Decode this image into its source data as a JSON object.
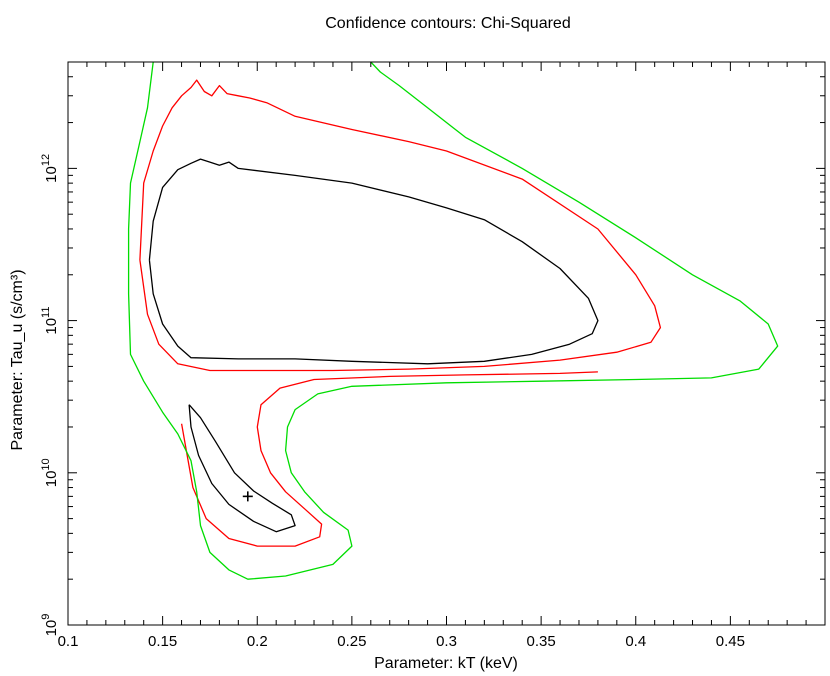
{
  "chart_data": {
    "type": "contour",
    "title": "Confidence contours: Chi-Squared",
    "xlabel": "Parameter: kT (keV)",
    "ylabel": "Parameter: Tau_u (s/cm³)",
    "xlim": [
      0.1,
      0.5
    ],
    "ylim": [
      1000000000.0,
      5000000000000.0
    ],
    "y_scale": "log",
    "x_ticks": [
      {
        "value": 0.1,
        "label": "0.1"
      },
      {
        "value": 0.15,
        "label": "0.15"
      },
      {
        "value": 0.2,
        "label": "0.2"
      },
      {
        "value": 0.25,
        "label": "0.25"
      },
      {
        "value": 0.3,
        "label": "0.3"
      },
      {
        "value": 0.35,
        "label": "0.35"
      },
      {
        "value": 0.4,
        "label": "0.4"
      },
      {
        "value": 0.45,
        "label": "0.45"
      }
    ],
    "y_ticks": [
      {
        "value": 1000000000.0,
        "mantissa": "10",
        "exp": "9"
      },
      {
        "value": 10000000000.0,
        "mantissa": "10",
        "exp": "10"
      },
      {
        "value": 100000000000.0,
        "mantissa": "10",
        "exp": "11"
      },
      {
        "value": 1000000000000.0,
        "mantissa": "10",
        "exp": "12"
      }
    ],
    "best_fit": {
      "x": 0.195,
      "y": 7000000000.0
    },
    "contours": [
      {
        "color": "#000000",
        "paths": [
          [
            [
              0.143,
              250000000000.0
            ],
            [
              0.145,
              450000000000.0
            ],
            [
              0.15,
              750000000000.0
            ],
            [
              0.158,
              980000000000.0
            ],
            [
              0.165,
              1080000000000.0
            ],
            [
              0.17,
              1150000000000.0
            ],
            [
              0.175,
              1100000000000.0
            ],
            [
              0.18,
              1050000000000.0
            ],
            [
              0.185,
              1100000000000.0
            ],
            [
              0.19,
              1000000000000.0
            ],
            [
              0.22,
              900000000000.0
            ],
            [
              0.25,
              800000000000.0
            ],
            [
              0.28,
              650000000000.0
            ],
            [
              0.3,
              550000000000.0
            ],
            [
              0.32,
              460000000000.0
            ],
            [
              0.34,
              330000000000.0
            ],
            [
              0.36,
              220000000000.0
            ],
            [
              0.375,
              140000000000.0
            ],
            [
              0.38,
              100000000000.0
            ],
            [
              0.377,
              82000000000.0
            ],
            [
              0.365,
              70000000000.0
            ],
            [
              0.345,
              60000000000.0
            ],
            [
              0.32,
              54000000000.0
            ],
            [
              0.29,
              52000000000.0
            ],
            [
              0.25,
              54000000000.0
            ],
            [
              0.22,
              56000000000.0
            ],
            [
              0.19,
              56000000000.0
            ],
            [
              0.165,
              57000000000.0
            ],
            [
              0.158,
              68000000000.0
            ],
            [
              0.15,
              95000000000.0
            ],
            [
              0.145,
              150000000000.0
            ],
            [
              0.143,
              250000000000.0
            ]
          ],
          [
            [
              0.164,
              28000000000.0
            ],
            [
              0.165,
              20000000000.0
            ],
            [
              0.169,
              13000000000.0
            ],
            [
              0.176,
              8500000000.0
            ],
            [
              0.185,
              6200000000.0
            ],
            [
              0.198,
              4800000000.0
            ],
            [
              0.21,
              4100000000.0
            ],
            [
              0.22,
              4500000000.0
            ],
            [
              0.218,
              5300000000.0
            ],
            [
              0.208,
              6300000000.0
            ],
            [
              0.198,
              7600000000.0
            ],
            [
              0.188,
              10000000000.0
            ],
            [
              0.178,
              16000000000.0
            ],
            [
              0.17,
              23000000000.0
            ],
            [
              0.164,
              28000000000.0
            ]
          ]
        ]
      },
      {
        "color": "#ff0000",
        "paths": [
          [
            [
              0.138,
              250000000000.0
            ],
            [
              0.14,
              800000000000.0
            ],
            [
              0.145,
              1300000000000.0
            ],
            [
              0.15,
              1900000000000.0
            ],
            [
              0.155,
              2500000000000.0
            ],
            [
              0.16,
              3000000000000.0
            ],
            [
              0.165,
              3400000000000.0
            ],
            [
              0.168,
              3800000000000.0
            ],
            [
              0.172,
              3200000000000.0
            ],
            [
              0.176,
              3000000000000.0
            ],
            [
              0.18,
              3500000000000.0
            ],
            [
              0.184,
              3100000000000.0
            ],
            [
              0.19,
              3000000000000.0
            ],
            [
              0.196,
              2900000000000.0
            ],
            [
              0.205,
              2700000000000.0
            ],
            [
              0.22,
              2200000000000.0
            ],
            [
              0.25,
              1800000000000.0
            ],
            [
              0.28,
              1500000000000.0
            ],
            [
              0.3,
              1300000000000.0
            ],
            [
              0.34,
              850000000000.0
            ],
            [
              0.38,
              400000000000.0
            ],
            [
              0.4,
              200000000000.0
            ],
            [
              0.41,
              125000000000.0
            ],
            [
              0.413,
              90000000000.0
            ],
            [
              0.408,
              72000000000.0
            ],
            [
              0.39,
              62000000000.0
            ],
            [
              0.36,
              55000000000.0
            ],
            [
              0.32,
              50000000000.0
            ],
            [
              0.28,
              48000000000.0
            ],
            [
              0.24,
              47000000000.0
            ],
            [
              0.2,
              47000000000.0
            ],
            [
              0.175,
              47000000000.0
            ],
            [
              0.158,
              52000000000.0
            ],
            [
              0.148,
              70000000000.0
            ],
            [
              0.142,
              110000000000.0
            ],
            [
              0.138,
              250000000000.0
            ]
          ],
          [
            [
              0.16,
              21000000000.0
            ],
            [
              0.163,
              13000000000.0
            ],
            [
              0.166,
              8000000000.0
            ],
            [
              0.173,
              5000000000.0
            ],
            [
              0.185,
              3700000000.0
            ],
            [
              0.2,
              3300000000.0
            ],
            [
              0.22,
              3300000000.0
            ],
            [
              0.233,
              3800000000.0
            ],
            [
              0.234,
              4600000000.0
            ],
            [
              0.225,
              5800000000.0
            ],
            [
              0.215,
              7500000000.0
            ],
            [
              0.207,
              10000000000.0
            ],
            [
              0.202,
              14000000000.0
            ],
            [
              0.2,
              20000000000.0
            ],
            [
              0.202,
              28000000000.0
            ],
            [
              0.212,
              36000000000.0
            ],
            [
              0.23,
              41000000000.0
            ],
            [
              0.27,
              43000000000.0
            ],
            [
              0.31,
              44000000000.0
            ],
            [
              0.36,
              45000000000.0
            ],
            [
              0.38,
              46000000000.0
            ]
          ]
        ]
      },
      {
        "color": "#00dd00",
        "paths": [
          [
            [
              0.145,
              5000000000000.0
            ],
            [
              0.142,
              2500000000000.0
            ],
            [
              0.138,
              1500000000000.0
            ],
            [
              0.133,
              800000000000.0
            ],
            [
              0.132,
              400000000000.0
            ],
            [
              0.132,
              150000000000.0
            ],
            [
              0.133,
              60000000000.0
            ],
            [
              0.14,
              40000000000.0
            ],
            [
              0.15,
              25000000000.0
            ],
            [
              0.158,
              18000000000.0
            ],
            [
              0.165,
              12000000000.0
            ],
            [
              0.168,
              7500000000.0
            ],
            [
              0.17,
              4500000000.0
            ],
            [
              0.175,
              3000000000.0
            ],
            [
              0.185,
              2300000000.0
            ],
            [
              0.195,
              2000000000.0
            ],
            [
              0.215,
              2100000000.0
            ],
            [
              0.24,
              2500000000.0
            ],
            [
              0.25,
              3300000000.0
            ],
            [
              0.248,
              4200000000.0
            ],
            [
              0.235,
              5500000000.0
            ],
            [
              0.225,
              7500000000.0
            ],
            [
              0.218,
              10000000000.0
            ],
            [
              0.215,
              14000000000.0
            ],
            [
              0.216,
              20000000000.0
            ],
            [
              0.22,
              26000000000.0
            ],
            [
              0.232,
              33000000000.0
            ],
            [
              0.25,
              37000000000.0
            ],
            [
              0.3,
              39000000000.0
            ],
            [
              0.35,
              40000000000.0
            ],
            [
              0.4,
              41000000000.0
            ],
            [
              0.44,
              42000000000.0
            ],
            [
              0.465,
              48000000000.0
            ],
            [
              0.475,
              68000000000.0
            ],
            [
              0.47,
              95000000000.0
            ],
            [
              0.455,
              135000000000.0
            ],
            [
              0.43,
              200000000000.0
            ],
            [
              0.4,
              350000000000.0
            ],
            [
              0.37,
              600000000000.0
            ],
            [
              0.34,
              1000000000000.0
            ],
            [
              0.31,
              1600000000000.0
            ],
            [
              0.29,
              2500000000000.0
            ],
            [
              0.275,
              3500000000000.0
            ],
            [
              0.265,
              4300000000000.0
            ],
            [
              0.26,
              5000000000000.0
            ]
          ]
        ]
      }
    ]
  }
}
